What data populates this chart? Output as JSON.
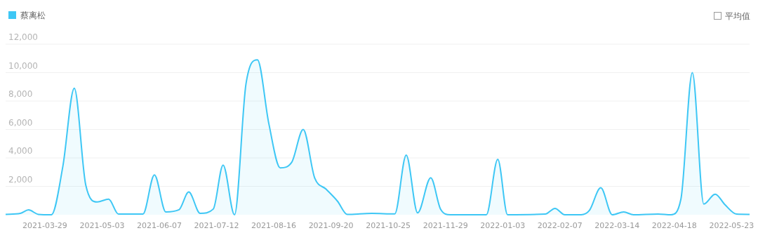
{
  "chart_data": {
    "type": "area",
    "legend": "top left",
    "grid": "y",
    "annotations": [
      "平均值"
    ],
    "xlim": [
      "2021-03-05",
      "2022-06-03"
    ],
    "xticks": [
      "2021-03-29",
      "2021-05-03",
      "2021-06-07",
      "2021-07-12",
      "2021-08-16",
      "2021-09-20",
      "2021-10-25",
      "2021-11-29",
      "2022-01-03",
      "2022-02-07",
      "2022-03-14",
      "2022-04-18",
      "2022-05-23"
    ],
    "ylim": [
      0,
      12000
    ],
    "yticks": [
      {
        "value": 2000,
        "label": "2,000"
      },
      {
        "value": 4000,
        "label": "4,000"
      },
      {
        "value": 6000,
        "label": "6,000"
      },
      {
        "value": 8000,
        "label": "8,000"
      },
      {
        "value": 10000,
        "label": "10,000"
      },
      {
        "value": 12000,
        "label": "12,000"
      }
    ],
    "x": [
      "2021-03-05",
      "2021-03-14",
      "2021-03-19",
      "2021-03-25",
      "2021-04-02",
      "2021-04-09",
      "2021-04-16",
      "2021-04-23",
      "2021-04-30",
      "2021-05-07",
      "2021-05-13",
      "2021-05-28",
      "2021-06-04",
      "2021-06-11",
      "2021-06-19",
      "2021-06-25",
      "2021-07-02",
      "2021-07-10",
      "2021-07-16",
      "2021-07-23",
      "2021-07-30",
      "2021-08-06",
      "2021-08-13",
      "2021-08-20",
      "2021-08-27",
      "2021-09-03",
      "2021-09-10",
      "2021-09-17",
      "2021-09-24",
      "2021-09-30",
      "2021-10-15",
      "2021-10-29",
      "2021-11-05",
      "2021-11-12",
      "2021-11-20",
      "2021-11-26",
      "2021-12-02",
      "2021-12-24",
      "2021-12-31",
      "2022-01-06",
      "2022-01-29",
      "2022-02-04",
      "2022-02-10",
      "2022-02-20",
      "2022-02-25",
      "2022-03-04",
      "2022-03-11",
      "2022-03-18",
      "2022-03-24",
      "2022-04-08",
      "2022-04-16",
      "2022-04-22",
      "2022-04-29",
      "2022-05-06",
      "2022-05-13",
      "2022-05-19",
      "2022-05-26",
      "2022-06-03"
    ],
    "series": [
      {
        "name": "蔡离松",
        "color": "#3ec7f5",
        "values": [
          30,
          100,
          340,
          30,
          0,
          3400,
          8900,
          2100,
          900,
          1100,
          50,
          50,
          2800,
          200,
          350,
          1600,
          100,
          400,
          3500,
          0,
          9200,
          10900,
          6400,
          3300,
          3700,
          6000,
          2600,
          1800,
          950,
          20,
          100,
          60,
          4200,
          130,
          2600,
          400,
          0,
          0,
          3900,
          0,
          50,
          450,
          0,
          0,
          300,
          1900,
          0,
          200,
          0,
          50,
          0,
          1100,
          10000,
          750,
          1450,
          700,
          50,
          30
        ]
      }
    ]
  }
}
